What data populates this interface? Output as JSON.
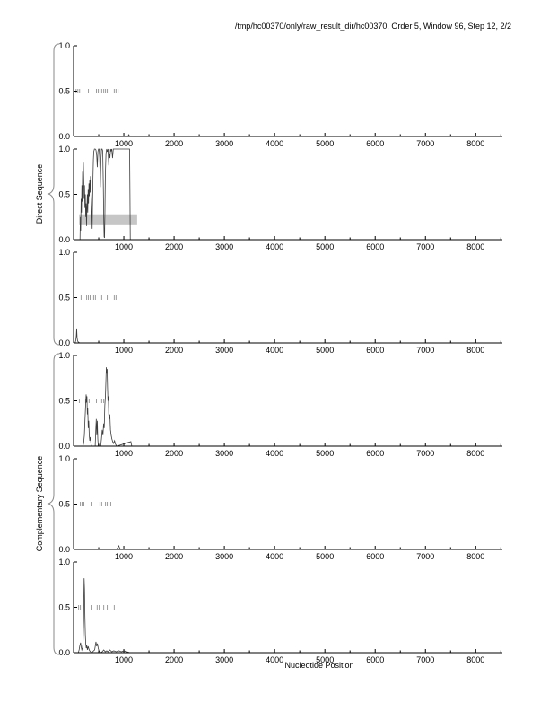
{
  "title": "/tmp/hc00370/only/raw_result_dir/hc00370, Order 5, Window 96, Step 12, 2/2",
  "group_labels": {
    "direct": "Direct Sequence",
    "complementary": "Complementary Sequence"
  },
  "colors": {
    "axis": "#000000",
    "curve": "#3c3c3c",
    "marks": "#9c9c9c",
    "region": "#c6c6c6",
    "brace": "#8a8a8a"
  },
  "chart_data": {
    "type": "line",
    "xlabel": "Nucleotide Position",
    "ylabel": "",
    "xlim": [
      0,
      8530
    ],
    "ylim": [
      0,
      1
    ],
    "x_major_ticks": [
      1000,
      2000,
      3000,
      4000,
      5000,
      6000,
      7000,
      8000
    ],
    "x_minor_start": 500,
    "x_minor_step": 1000,
    "y_ticks": [
      0,
      0.5,
      1
    ],
    "y_tick_labels": [
      "0.0",
      "0.5",
      "1.0"
    ],
    "grid": false,
    "legend": false,
    "panels": [
      {
        "name": "direct-frame-1",
        "marks_y": 0.5,
        "marks_x": [
          50,
          85,
          120,
          295,
          455,
          490,
          525,
          560,
          600,
          635,
          670,
          705,
          810,
          845,
          885
        ],
        "curve": {
          "x": [
            0,
            1080,
            1100,
            1115,
            1300
          ],
          "y": [
            0,
            0,
            0.02,
            0,
            0
          ]
        }
      },
      {
        "name": "direct-frame-2",
        "marks_y": 0.5,
        "marks_x": [],
        "region": {
          "x0": 110,
          "x1": 1265,
          "y0": 0.16,
          "y1": 0.28
        },
        "curve": {
          "x": [
            128,
            135,
            142,
            150,
            158,
            165,
            172,
            180,
            188,
            195,
            203,
            210,
            218,
            226,
            234,
            242,
            250,
            258,
            266,
            274,
            282,
            290,
            298,
            306,
            314,
            322,
            330,
            338,
            346,
            354,
            362,
            370,
            378,
            386,
            394,
            402,
            415,
            430,
            445,
            460,
            472,
            484,
            496,
            508,
            520,
            532,
            544,
            556,
            568,
            580,
            592,
            600,
            608,
            616,
            624,
            632,
            645,
            658,
            670,
            685,
            700,
            712,
            724,
            736,
            748,
            760,
            775,
            790,
            810,
            830,
            860,
            900,
            950,
            1000,
            1050,
            1090,
            1115,
            1122,
            1128
          ],
          "y": [
            0,
            0.25,
            0.1,
            0.45,
            0.3,
            0.6,
            0.42,
            0.75,
            0.55,
            0.85,
            0.65,
            0.45,
            0.6,
            0.35,
            0.5,
            0.25,
            0.4,
            0.15,
            0.35,
            0.5,
            0.3,
            0.55,
            0.4,
            0.62,
            0.48,
            0.66,
            0.52,
            0.7,
            0.58,
            0.45,
            0.3,
            0.12,
            0.4,
            0.68,
            0.88,
            0.97,
            1.0,
            1.0,
            0.99,
            0.93,
            0.8,
            0.97,
            1.0,
            1.0,
            0.9,
            0.58,
            0.88,
            1.0,
            1.0,
            0.98,
            0.6,
            0.25,
            0.03,
            0.02,
            0.3,
            0.7,
            0.95,
            1.0,
            0.97,
            1.0,
            0.82,
            0.95,
            0.9,
            1.0,
            0.98,
            1.0,
            0.9,
            1.0,
            1.0,
            1.0,
            1.0,
            1.0,
            1.0,
            1.0,
            1.0,
            1.0,
            1.0,
            0.5,
            0
          ]
        }
      },
      {
        "name": "direct-frame-3",
        "marks_y": 0.5,
        "marks_x": [
          150,
          260,
          295,
          330,
          400,
          435,
          560,
          670,
          705,
          810,
          845
        ],
        "curve": {
          "x": [
            30,
            45,
            55,
            62,
            70,
            80,
            95,
            120
          ],
          "y": [
            0,
            0.03,
            0.08,
            0.16,
            0.06,
            0.02,
            0.01,
            0
          ]
        }
      },
      {
        "name": "complementary-frame-1",
        "marks_y": 0.5,
        "marks_x": [
          115,
          240,
          310,
          455,
          560,
          600
        ],
        "curve": {
          "x": [
            185,
            200,
            215,
            228,
            240,
            250,
            258,
            266,
            274,
            282,
            292,
            302,
            312,
            322,
            334,
            346,
            358,
            430,
            442,
            452,
            462,
            472,
            482,
            492,
            540,
            555,
            570,
            585,
            598,
            610,
            622,
            634,
            645,
            652,
            660,
            668,
            676,
            684,
            692,
            700,
            710,
            722,
            734,
            748,
            762,
            778,
            795,
            815,
            835,
            860,
            1140,
            1150,
            1160
          ],
          "y": [
            0,
            0.03,
            0.12,
            0.3,
            0.45,
            0.57,
            0.48,
            0.55,
            0.35,
            0.42,
            0.2,
            0.28,
            0.12,
            0.06,
            0.1,
            0.03,
            0,
            0,
            0.18,
            0.3,
            0.12,
            0.28,
            0.08,
            0,
            0,
            0.08,
            0.18,
            0.12,
            0.25,
            0.2,
            0.45,
            0.55,
            0.75,
            0.87,
            0.8,
            0.85,
            0.65,
            0.5,
            0.55,
            0.35,
            0.3,
            0.35,
            0.18,
            0.12,
            0.08,
            0.05,
            0.03,
            0.06,
            0.02,
            0,
            0.05,
            0.02,
            0
          ]
        }
      },
      {
        "name": "complementary-frame-2",
        "marks_y": 0.5,
        "marks_x": [
          135,
          170,
          205,
          365,
          525,
          560,
          635,
          670,
          740
        ],
        "curve": {
          "x": [
            850,
            880,
            900,
            920,
            950
          ],
          "y": [
            0,
            0.02,
            0.04,
            0.01,
            0
          ]
        }
      },
      {
        "name": "complementary-frame-3",
        "marks_y": 0.5,
        "marks_x": [
          100,
          135,
          365,
          470,
          510,
          600,
          670,
          810
        ],
        "curve": {
          "x": [
            95,
            110,
            125,
            140,
            152,
            164,
            176,
            188,
            200,
            210,
            218,
            226,
            234,
            242,
            252,
            262,
            275,
            290,
            305,
            320,
            340,
            360,
            420,
            445,
            460,
            475,
            490,
            505,
            520,
            540,
            570,
            600,
            630,
            660,
            690,
            720,
            760,
            800,
            850,
            900,
            950,
            1000,
            1060,
            1120
          ],
          "y": [
            0,
            0.03,
            0.08,
            0.11,
            0.06,
            0.03,
            0.05,
            0.1,
            0.35,
            0.82,
            0.7,
            0.4,
            0.2,
            0.1,
            0.05,
            0.08,
            0.03,
            0.07,
            0.04,
            0.02,
            0.01,
            0,
            0.03,
            0.12,
            0.07,
            0.1,
            0.05,
            0.02,
            0.01,
            0,
            0.01,
            0.03,
            0.01,
            0.02,
            0.01,
            0.03,
            0.01,
            0.02,
            0.01,
            0.02,
            0.01,
            0.02,
            0.01,
            0
          ]
        }
      }
    ]
  }
}
